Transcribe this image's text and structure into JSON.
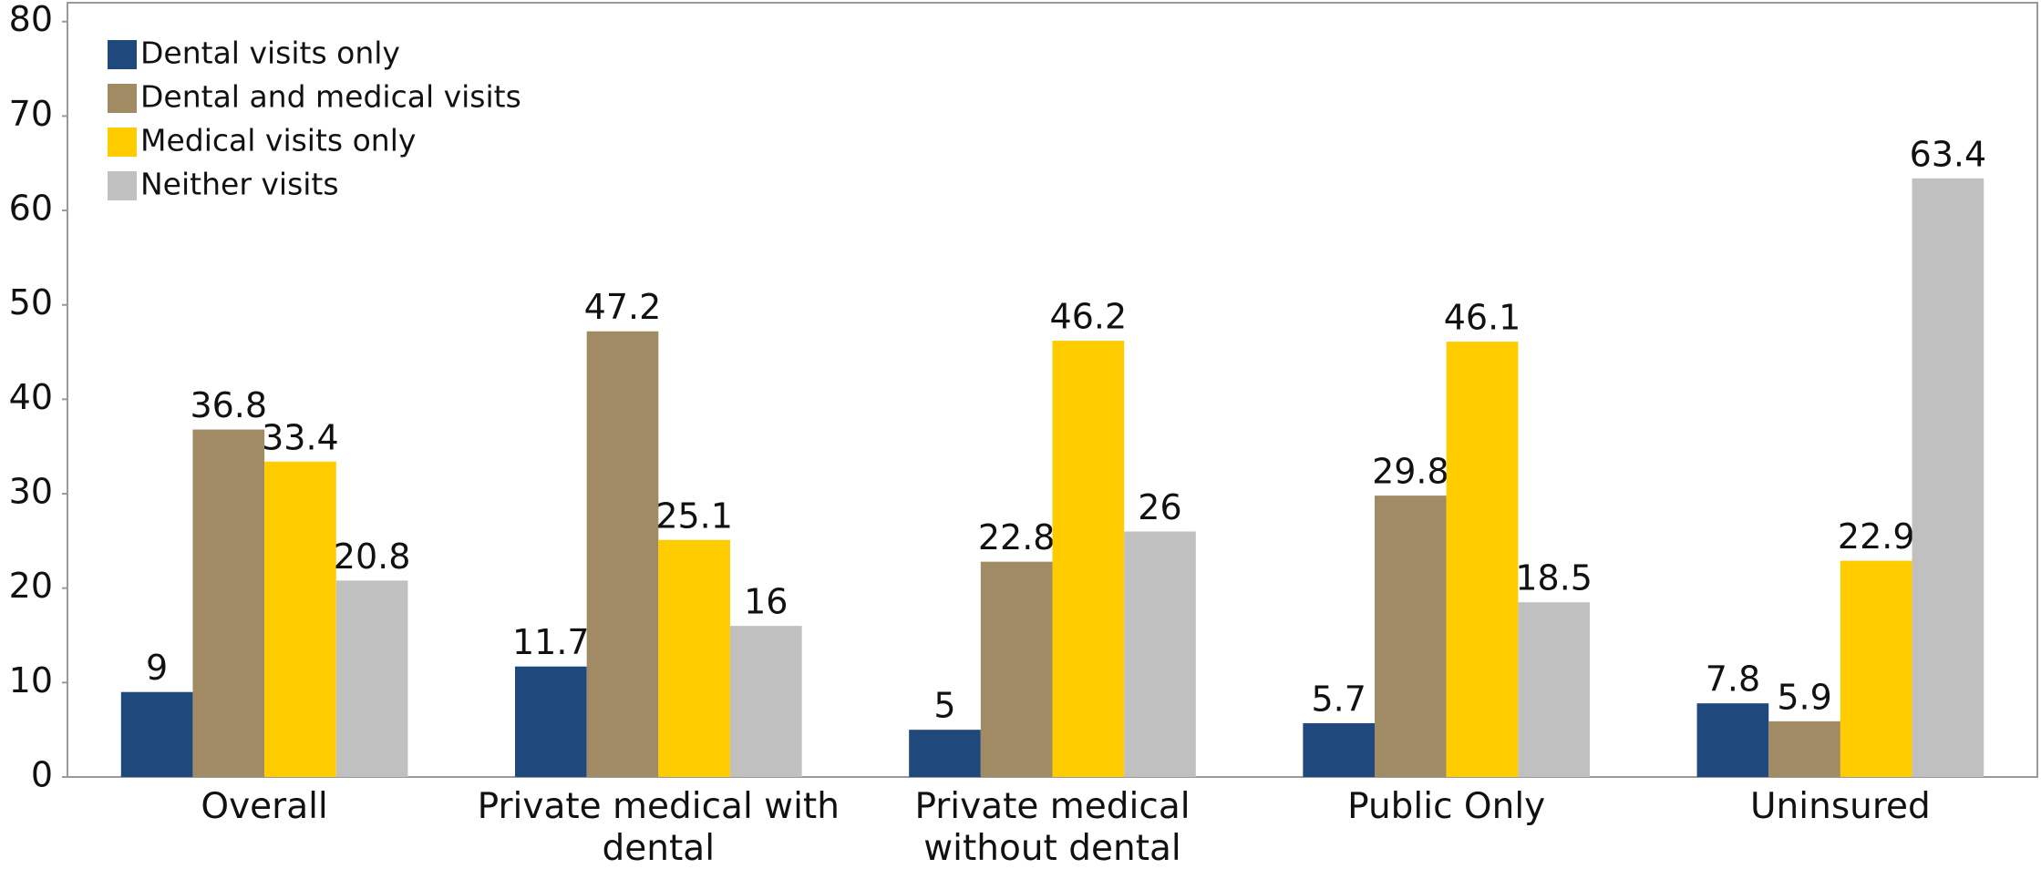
{
  "chart_data": {
    "type": "bar",
    "categories": [
      "Overall",
      "Private medical with dental",
      "Private medical without dental",
      "Public Only",
      "Uninsured"
    ],
    "series": [
      {
        "name": "Dental visits only",
        "color": "#1f497d",
        "values": [
          9,
          11.7,
          5,
          5.7,
          7.8
        ]
      },
      {
        "name": "Dental and medical visits",
        "color": "#a08b64",
        "values": [
          36.8,
          47.2,
          22.8,
          29.8,
          5.9
        ]
      },
      {
        "name": "Medical visits only",
        "color": "#ffcc00",
        "values": [
          33.4,
          25.1,
          46.2,
          46.1,
          22.9
        ]
      },
      {
        "name": "Neither visits",
        "color": "#c0c0c0",
        "values": [
          20.8,
          16,
          26,
          18.5,
          63.4
        ]
      }
    ],
    "ylim": [
      0,
      82
    ],
    "yticks": [
      0,
      10,
      20,
      30,
      40,
      50,
      60,
      70,
      80
    ],
    "legend": "upper left",
    "grid": false
  }
}
